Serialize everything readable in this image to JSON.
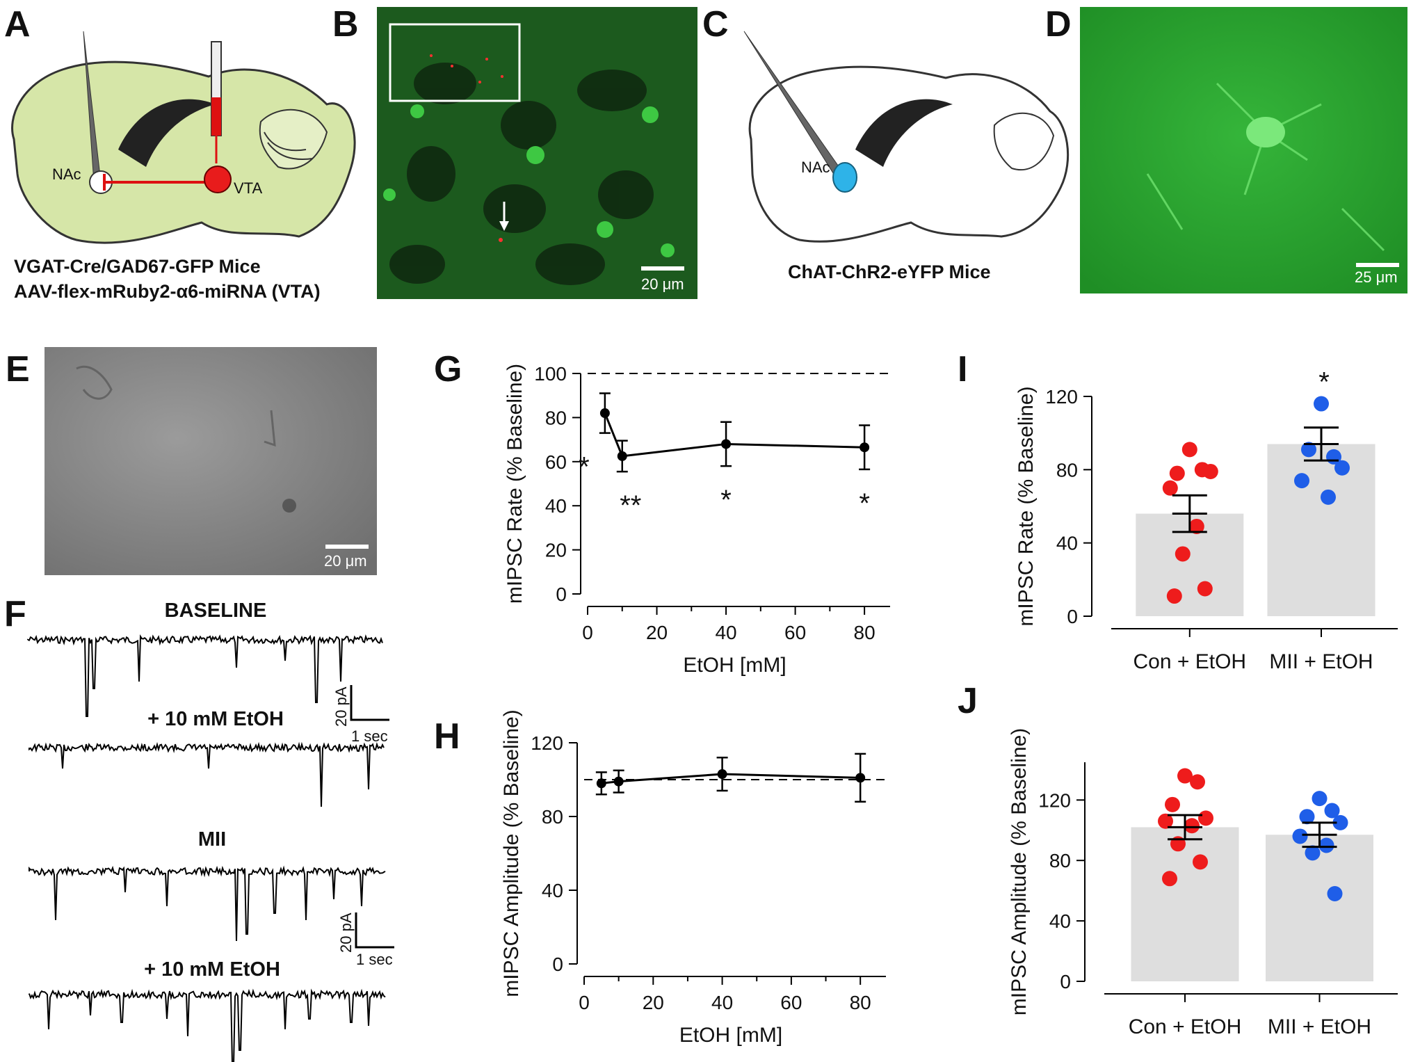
{
  "panels": {
    "A": {
      "label": "A",
      "caption_line1": "VGAT-Cre/GAD67-GFP Mice",
      "caption_line2": "AAV-flex-mRuby2-α6-miRNA (VTA)",
      "region1": "NAc",
      "region2": "VTA"
    },
    "B": {
      "label": "B",
      "scalebar": "20 μm"
    },
    "C": {
      "label": "C",
      "caption": "ChAT-ChR2-eYFP Mice",
      "region": "NAc"
    },
    "D": {
      "label": "D",
      "scalebar": "25 μm"
    },
    "E": {
      "label": "E",
      "scalebar": "20 μm"
    },
    "F": {
      "label": "F",
      "traces": [
        "BASELINE",
        "+ 10 mM EtOH",
        "MII",
        "+ 10 mM EtOH"
      ],
      "scale_pa": "20 pA",
      "scale_time": "1 sec"
    },
    "G": {
      "label": "G"
    },
    "H": {
      "label": "H"
    },
    "I": {
      "label": "I"
    },
    "J": {
      "label": "J"
    }
  },
  "colors": {
    "con": "#ee1c1c",
    "mii": "#1f5ee8",
    "bar": "#dedede",
    "tissue": "#d6e6a8",
    "green_fluor": "#22a82a"
  },
  "chart_data": [
    {
      "panel": "G",
      "type": "line",
      "x": [
        5,
        10,
        40,
        80
      ],
      "y": [
        82,
        62.5,
        68,
        66.5
      ],
      "err": [
        9,
        7,
        10,
        10
      ],
      "xlabel": "EtOH [mM]",
      "ylabel": "mIPSC Rate (% Baseline)",
      "xlim": [
        0,
        85
      ],
      "ylim": [
        0,
        100
      ],
      "xticks": [
        "0",
        "20",
        "40",
        "60",
        "80"
      ],
      "yticks": [
        "0",
        "20",
        "40",
        "60",
        "80",
        "100"
      ],
      "reference_line": 100,
      "significance": [
        "*",
        "**",
        "*",
        "*"
      ]
    },
    {
      "panel": "H",
      "type": "line",
      "x": [
        5,
        10,
        40,
        80
      ],
      "y": [
        98,
        99,
        103,
        101
      ],
      "err": [
        6,
        6,
        9,
        13
      ],
      "xlabel": "EtOH [mM]",
      "ylabel": "mIPSC Amplitude (% Baseline)",
      "xlim": [
        0,
        85
      ],
      "ylim": [
        0,
        120
      ],
      "xticks": [
        "0",
        "20",
        "40",
        "60",
        "80"
      ],
      "yticks": [
        "0",
        "40",
        "80",
        "120"
      ],
      "reference_line": 100
    },
    {
      "panel": "I",
      "type": "bar",
      "categories": [
        "Con + EtOH",
        "MII + EtOH"
      ],
      "values": [
        56,
        94
      ],
      "sem": [
        10,
        9
      ],
      "points": [
        [
          91,
          80,
          78,
          79,
          70,
          49,
          34,
          15,
          11
        ],
        [
          116,
          87,
          91,
          81,
          74,
          65
        ]
      ],
      "ylabel": "mIPSC Rate (% Baseline)",
      "ylim": [
        0,
        120
      ],
      "yticks": [
        "0",
        "40",
        "80",
        "120"
      ],
      "significance": [
        "",
        "*"
      ]
    },
    {
      "panel": "J",
      "type": "bar",
      "categories": [
        "Con + EtOH",
        "MII + EtOH"
      ],
      "values": [
        102,
        97
      ],
      "sem": [
        8,
        8
      ],
      "points": [
        [
          136,
          132,
          117,
          108,
          106,
          103,
          91,
          79,
          68
        ],
        [
          121,
          113,
          109,
          105,
          96,
          90,
          85,
          58
        ]
      ],
      "ylabel": "mIPSC Amplitude (% Baseline)",
      "ylim": [
        0,
        145
      ],
      "yticks": [
        "0",
        "40",
        "80",
        "120"
      ]
    }
  ]
}
